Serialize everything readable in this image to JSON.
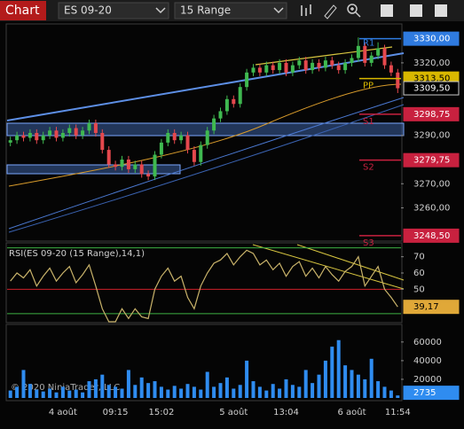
{
  "toolbar": {
    "label": "Chart",
    "instrument": "ES 09-20",
    "period": "15 Range"
  },
  "chart_data": [
    {
      "type": "candlestick",
      "categories": [
        null,
        null,
        null,
        null,
        null,
        null,
        null,
        null,
        "4 août",
        null,
        null,
        null,
        null,
        null,
        null,
        null,
        "09:15",
        null,
        null,
        null,
        null,
        null,
        null,
        "15:02",
        null,
        null,
        null,
        null,
        null,
        null,
        null,
        null,
        null,
        null,
        "5 août",
        null,
        null,
        null,
        null,
        null,
        null,
        null,
        "13:04",
        null,
        null,
        null,
        null,
        null,
        null,
        null,
        null,
        null,
        "6 août",
        null,
        null,
        null,
        null,
        null,
        null,
        "11:54"
      ],
      "open": [
        3287,
        3288,
        3290,
        3289,
        3291,
        3288,
        3290,
        3292,
        3289,
        3291,
        3293,
        3290,
        3292,
        3295,
        3291,
        3284,
        3278,
        3277,
        3280,
        3276,
        3278,
        3274,
        3273,
        3282,
        3287,
        3291,
        3288,
        3290,
        3284,
        3279,
        3286,
        3292,
        3297,
        3300,
        3305,
        3303,
        3310,
        3316,
        3318,
        3316,
        3319,
        3317,
        3320,
        3316,
        3319,
        3321,
        3317,
        3320,
        3318,
        3321,
        3319,
        3317,
        3320,
        3322,
        3327,
        3320,
        3323,
        3326,
        3319,
        3316
      ],
      "high": [
        3289.5,
        3291.5,
        3291.5,
        3292.5,
        3292.5,
        3291.5,
        3293.5,
        3293.5,
        3292.5,
        3294.5,
        3294.5,
        3293.5,
        3296.5,
        3296.5,
        3292.5,
        3285.5,
        3279.5,
        3281.5,
        3281.5,
        3279.5,
        3279.5,
        3275.5,
        3283.5,
        3288.5,
        3292.5,
        3292.5,
        3291.5,
        3291.5,
        3285.5,
        3287.5,
        3293.5,
        3298.5,
        3301.5,
        3306.5,
        3306.5,
        3311.5,
        3317.5,
        3319.5,
        3319.5,
        3320.5,
        3320.5,
        3321.5,
        3321.5,
        3320.5,
        3322.5,
        3322.5,
        3321.5,
        3321.5,
        3322.5,
        3322.5,
        3320.5,
        3321.5,
        3323.5,
        3330.5,
        3328.5,
        3324.5,
        3328.5,
        3327.5,
        3320.5,
        3317.5
      ],
      "low": [
        3285.5,
        3286.5,
        3287.5,
        3287.5,
        3286.5,
        3286.5,
        3288.5,
        3287.5,
        3287.5,
        3289.5,
        3288.5,
        3288.5,
        3290.5,
        3289.5,
        3282.5,
        3276.5,
        3275.5,
        3275.5,
        3274.5,
        3274.5,
        3272.5,
        3271.5,
        3271.5,
        3280.5,
        3285.5,
        3286.5,
        3286.5,
        3282.5,
        3277.5,
        3277.5,
        3284.5,
        3290.5,
        3295.5,
        3298.5,
        3301.5,
        3301.5,
        3308.5,
        3314.5,
        3314.5,
        3314.5,
        3315.5,
        3315.5,
        3314.5,
        3314.5,
        3317.5,
        3315.5,
        3315.5,
        3316.5,
        3316.5,
        3317.5,
        3315.5,
        3315.5,
        3318.5,
        3320.5,
        3318.5,
        3318.5,
        3321.5,
        3317.5,
        3314.5,
        3307.5
      ],
      "close": [
        3288,
        3290,
        3289,
        3291,
        3288,
        3290,
        3292,
        3289,
        3291,
        3293,
        3290,
        3292,
        3295,
        3291,
        3284,
        3278,
        3277,
        3280,
        3276,
        3278,
        3274,
        3273,
        3282,
        3287,
        3291,
        3288,
        3290,
        3284,
        3279,
        3286,
        3292,
        3297,
        3300,
        3305,
        3303,
        3310,
        3316,
        3318,
        3316,
        3319,
        3317,
        3320,
        3316,
        3319,
        3321,
        3317,
        3320,
        3318,
        3321,
        3319,
        3317,
        3320,
        3322,
        3327,
        3320,
        3323,
        3326,
        3319,
        3316,
        3309.5
      ],
      "up_color": "#3fb950",
      "down_color": "#e5484d",
      "ylim": [
        3247,
        3335
      ],
      "yticks": [
        {
          "value": 3320,
          "label": "3320,00"
        },
        {
          "value": 3290,
          "label": "3290,00"
        },
        {
          "value": 3270,
          "label": "3270,00"
        },
        {
          "value": 3260,
          "label": "3260,00"
        }
      ],
      "pivots": [
        {
          "name": "R1",
          "value": 3330,
          "label": "3330,00",
          "color": "#2f7be0"
        },
        {
          "name": "PP",
          "value": 3313.5,
          "label": "3313,50",
          "color": "#d9b800"
        },
        {
          "name": "S1",
          "value": 3298.75,
          "label": "3298,75",
          "color": "#c8213f"
        },
        {
          "name": "S2",
          "value": 3279.75,
          "label": "3279,75",
          "color": "#c8213f"
        },
        {
          "name": "S3",
          "value": 3248.5,
          "label": "3248,50",
          "color": "#c8213f"
        }
      ],
      "last": {
        "value": 3309.5,
        "label": "3309,50"
      }
    },
    {
      "type": "line",
      "title": "RSI(ES 09-20 (15 Range),14,1)",
      "series": [
        {
          "name": "RSI",
          "color": "#c9b36a",
          "values": [
            55,
            60,
            57,
            62,
            52,
            58,
            63,
            55,
            60,
            64,
            54,
            59,
            65,
            52,
            38,
            30,
            30,
            38,
            32,
            38,
            33,
            32,
            50,
            58,
            63,
            55,
            58,
            45,
            38,
            52,
            60,
            66,
            68,
            72,
            65,
            70,
            74,
            72,
            65,
            68,
            62,
            66,
            58,
            64,
            67,
            58,
            63,
            57,
            64,
            59,
            55,
            61,
            64,
            70,
            52,
            58,
            64,
            50,
            45,
            39.17
          ]
        }
      ],
      "last_label": "39,17",
      "last_color": "#e0a838",
      "ylim": [
        30,
        78
      ],
      "yticks": [
        50,
        60,
        70
      ],
      "levels": [
        {
          "value": 75.5,
          "color": "#3cb043"
        },
        {
          "value": 50,
          "color": "#d0202a"
        },
        {
          "value": 35,
          "color": "#3cb043"
        }
      ]
    },
    {
      "type": "bar",
      "color": "#2f8cf0",
      "values": [
        8000,
        12000,
        30000,
        15000,
        9000,
        7000,
        10000,
        6000,
        12000,
        8000,
        9000,
        6000,
        18000,
        20000,
        25000,
        14000,
        12000,
        10000,
        30000,
        14000,
        22000,
        16000,
        18000,
        12000,
        9000,
        13000,
        10000,
        15000,
        12000,
        9000,
        28000,
        12000,
        16000,
        22000,
        10000,
        14000,
        40000,
        18000,
        12000,
        8000,
        15000,
        10000,
        20000,
        14000,
        12000,
        30000,
        16000,
        25000,
        40000,
        55000,
        62000,
        35000,
        30000,
        25000,
        20000,
        42000,
        18000,
        12000,
        8000,
        2735
      ],
      "ylim": [
        0,
        76000
      ],
      "yticks": [
        20000,
        40000,
        60000
      ],
      "annotation": "© 2020 NinjaTrader, LLC"
    }
  ]
}
